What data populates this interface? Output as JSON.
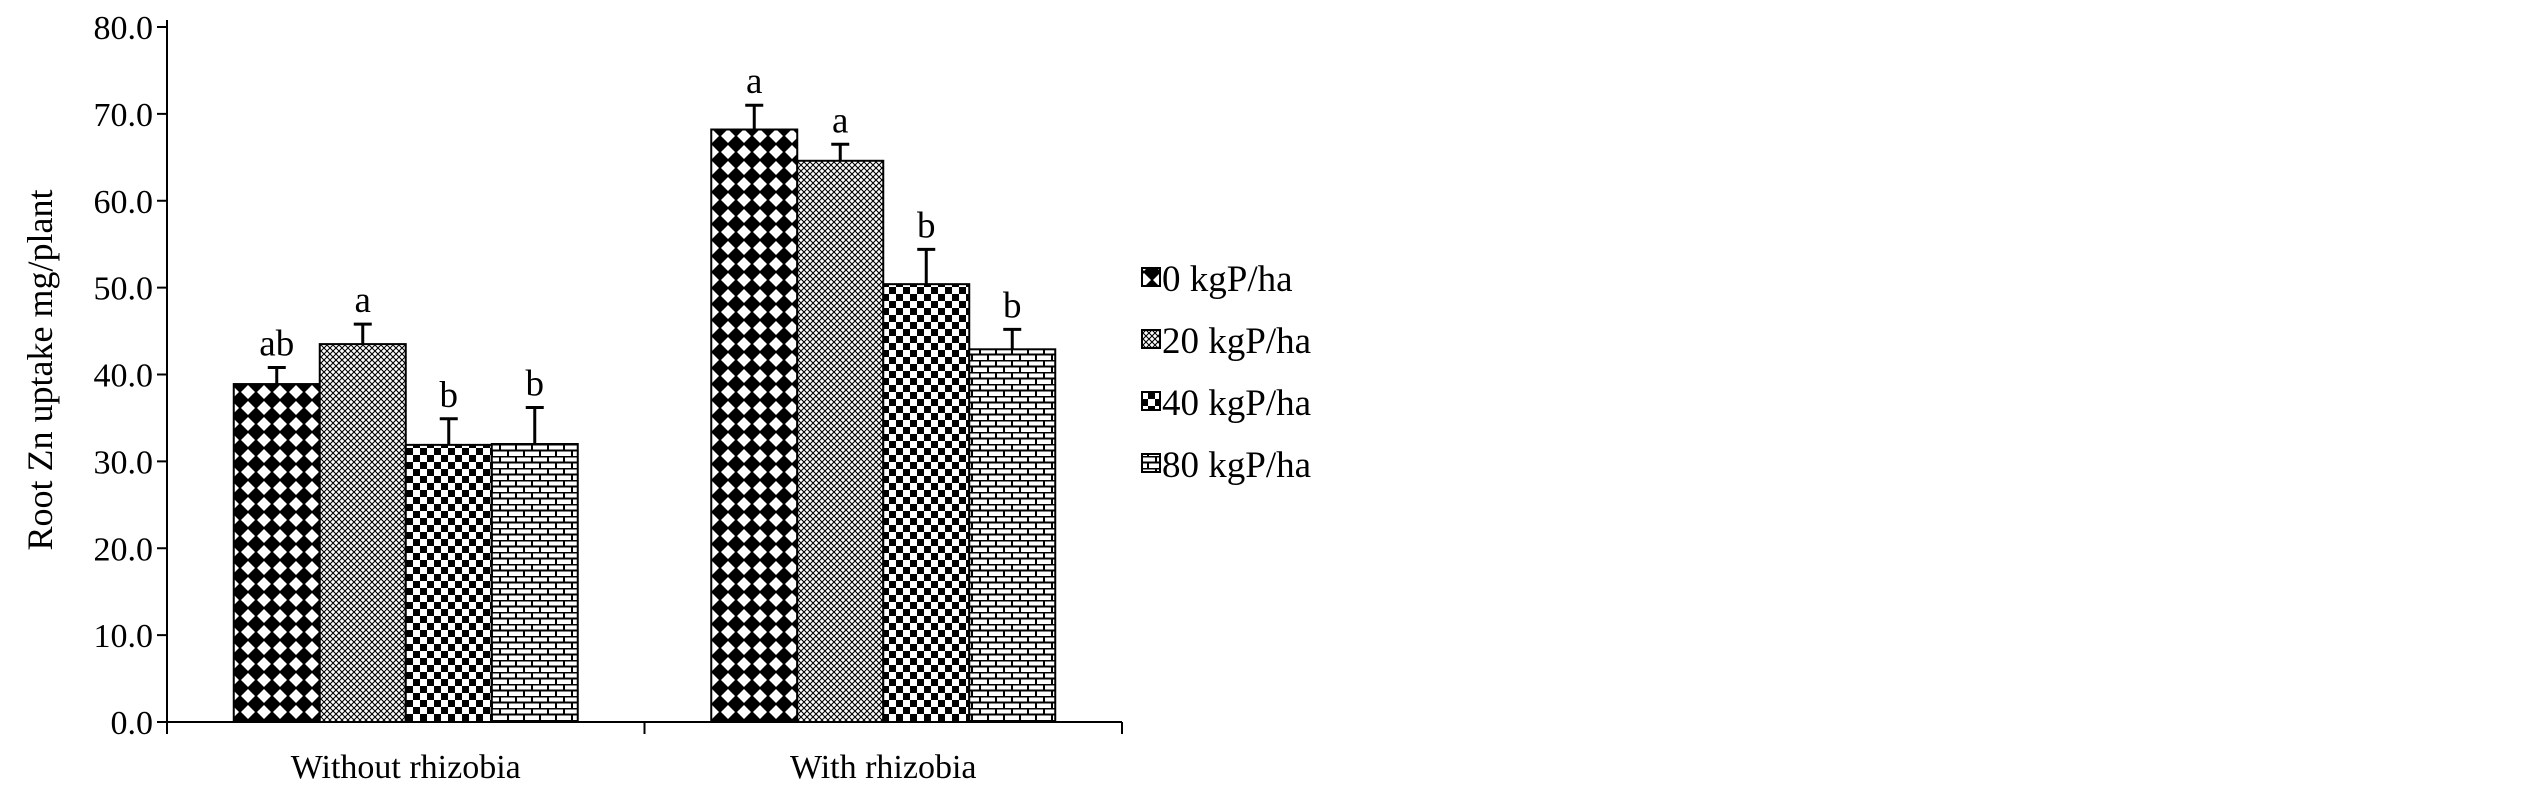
{
  "chart_data": {
    "type": "bar",
    "title": "",
    "xlabel": "",
    "ylabel": "Root Zn uptake mg/plant",
    "ylim": [
      0,
      80
    ],
    "y_ticks": [
      "0.0",
      "10.0",
      "20.0",
      "30.0",
      "40.0",
      "50.0",
      "60.0",
      "70.0",
      "80.0"
    ],
    "categories": [
      "Without rhizobia",
      "With rhizobia"
    ],
    "series": [
      {
        "name": "0 kgP/ha",
        "pattern": "diamond-checker",
        "values": [
          38.9,
          68.2
        ],
        "errors": [
          1.9,
          2.8
        ],
        "letters": [
          "ab",
          "a"
        ]
      },
      {
        "name": "20 kgP/ha",
        "pattern": "fine-crosshatch",
        "values": [
          43.5,
          64.6
        ],
        "errors": [
          2.3,
          1.9
        ],
        "letters": [
          "a",
          "a"
        ]
      },
      {
        "name": "40 kgP/ha",
        "pattern": "checkerboard",
        "values": [
          31.9,
          50.4
        ],
        "errors": [
          3.0,
          4.0
        ],
        "letters": [
          "b",
          "b"
        ]
      },
      {
        "name": "80 kgP/ha",
        "pattern": "brick",
        "values": [
          32.0,
          42.9
        ],
        "errors": [
          4.2,
          2.3
        ],
        "letters": [
          "b",
          "b"
        ]
      }
    ],
    "grid": false,
    "legend_position": "right",
    "colors": {
      "fill_dark": "#000000",
      "fill_light": "#ffffff"
    }
  }
}
